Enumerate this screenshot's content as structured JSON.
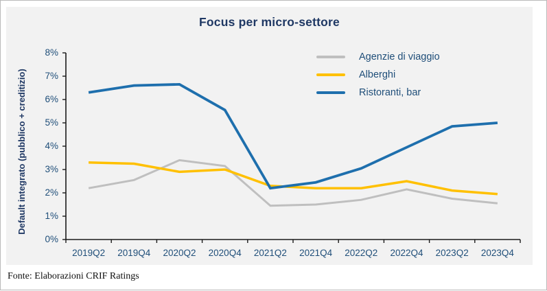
{
  "title": "Focus per micro-settore",
  "footer": "Fonte: Elaborazioni CRIF Ratings",
  "colors": {
    "panel_background": "#f2f2f2",
    "axis_line": "#1a1a1a",
    "title_text": "#1f3864",
    "tick_text": "#1f4e79",
    "series_agenzie": "#bfbfbf",
    "series_alberghi": "#ffc000",
    "series_ristoranti": "#1e6fad"
  },
  "chart_data": {
    "type": "line",
    "title": "Focus per micro-settore",
    "xlabel": "",
    "ylabel": "Default integrato (pubblico + creditizio)",
    "ylim": [
      0,
      8
    ],
    "yticks": [
      "0%",
      "1%",
      "2%",
      "3%",
      "4%",
      "5%",
      "6%",
      "7%",
      "8%"
    ],
    "grid": false,
    "legend_position": "top-right",
    "categories": [
      "2019Q2",
      "2019Q4",
      "2020Q2",
      "2020Q4",
      "2021Q2",
      "2021Q4",
      "2022Q2",
      "2022Q4",
      "2023Q2",
      "2023Q4"
    ],
    "series": [
      {
        "name": "Agenzie di viaggio",
        "color": "#bfbfbf",
        "stroke_width": 3,
        "values": [
          2.2,
          2.55,
          3.4,
          3.15,
          1.45,
          1.5,
          1.7,
          2.15,
          1.75,
          1.55
        ]
      },
      {
        "name": "Alberghi",
        "color": "#ffc000",
        "stroke_width": 3.5,
        "values": [
          3.3,
          3.25,
          2.9,
          3.0,
          2.3,
          2.2,
          2.2,
          2.5,
          2.1,
          1.95
        ]
      },
      {
        "name": "Ristoranti, bar",
        "color": "#1e6fad",
        "stroke_width": 3.8,
        "values": [
          6.3,
          6.6,
          6.65,
          5.55,
          2.2,
          2.45,
          3.05,
          3.95,
          4.85,
          5.0
        ]
      }
    ]
  }
}
